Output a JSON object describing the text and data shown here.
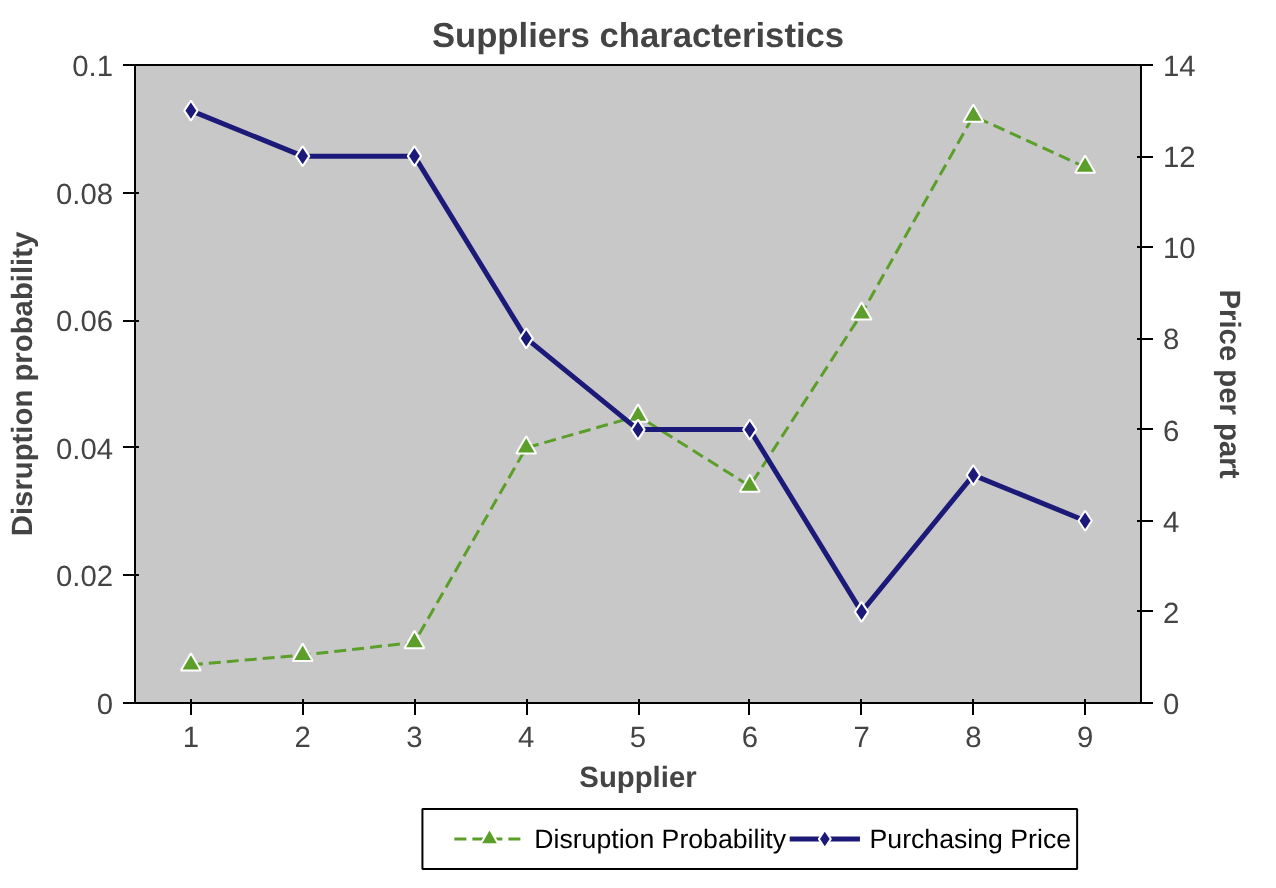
{
  "chart_data": {
    "type": "line",
    "title": "Suppliers characteristics",
    "xlabel": "Supplier",
    "ylabel": "Disruption probability",
    "y2label": "Price per part",
    "categories": [
      "1",
      "2",
      "3",
      "4",
      "5",
      "6",
      "7",
      "8",
      "9"
    ],
    "series": [
      {
        "name": "Disruption Probability",
        "color": "#5b9e2a",
        "marker": "triangle",
        "line_style": "dashed",
        "values": [
          0.006,
          0.0075,
          0.0095,
          0.04,
          0.045,
          0.034,
          0.061,
          0.092,
          0.084
        ]
      },
      {
        "name": "Purchasing Price",
        "color": "#1c1a78",
        "marker": "diamond",
        "line_style": "solid",
        "axis": "y2",
        "values": [
          13,
          12,
          12,
          8,
          6,
          6,
          2,
          5,
          4
        ]
      }
    ],
    "ylim": [
      0,
      0.1
    ],
    "yticks": [
      0,
      0.02,
      0.04,
      0.06,
      0.08,
      0.1
    ],
    "y2lim": [
      0,
      14
    ],
    "y2ticks": [
      0,
      2,
      4,
      6,
      8,
      10,
      12,
      14
    ],
    "grid": false,
    "legend": "bottom"
  }
}
